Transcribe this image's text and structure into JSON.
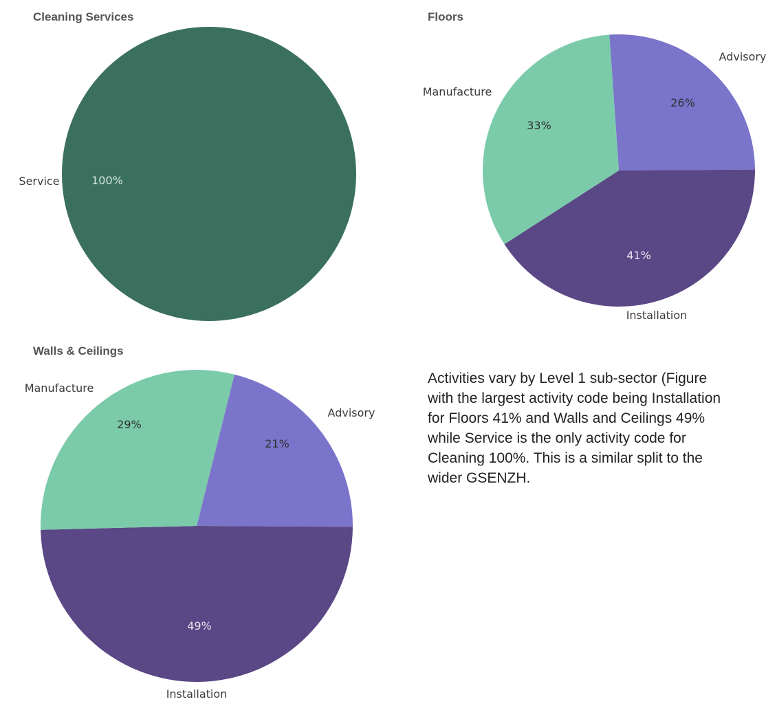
{
  "chart_data": [
    {
      "type": "pie",
      "title": "Cleaning Services",
      "categories": [
        "Service"
      ],
      "values": [
        100
      ],
      "value_labels": [
        "100%"
      ],
      "colors": [
        "#3b705e"
      ]
    },
    {
      "type": "pie",
      "title": "Floors",
      "categories": [
        "Advisory",
        "Installation",
        "Manufacture"
      ],
      "values": [
        26,
        41,
        33
      ],
      "value_labels": [
        "26%",
        "41%",
        "33%"
      ],
      "colors": [
        "#7b74cb",
        "#5a4785",
        "#7bcbaa"
      ]
    },
    {
      "type": "pie",
      "title": "Walls & Ceilings",
      "categories": [
        "Advisory",
        "Installation",
        "Manufacture"
      ],
      "values": [
        21,
        49,
        29
      ],
      "value_labels": [
        "21%",
        "49%",
        "29%"
      ],
      "colors": [
        "#7b74cb",
        "#5a4785",
        "#7bcbaa"
      ]
    }
  ],
  "paragraph": {
    "lines": [
      "Activities vary by Level 1 sub-sector (Figure",
      "with the largest activity code being Installation",
      "for Floors 41% and Walls and Ceilings 49%",
      "while Service is the only activity code for",
      "Cleaning 100%. This is a similar split to the",
      "wider GSENZH."
    ]
  }
}
